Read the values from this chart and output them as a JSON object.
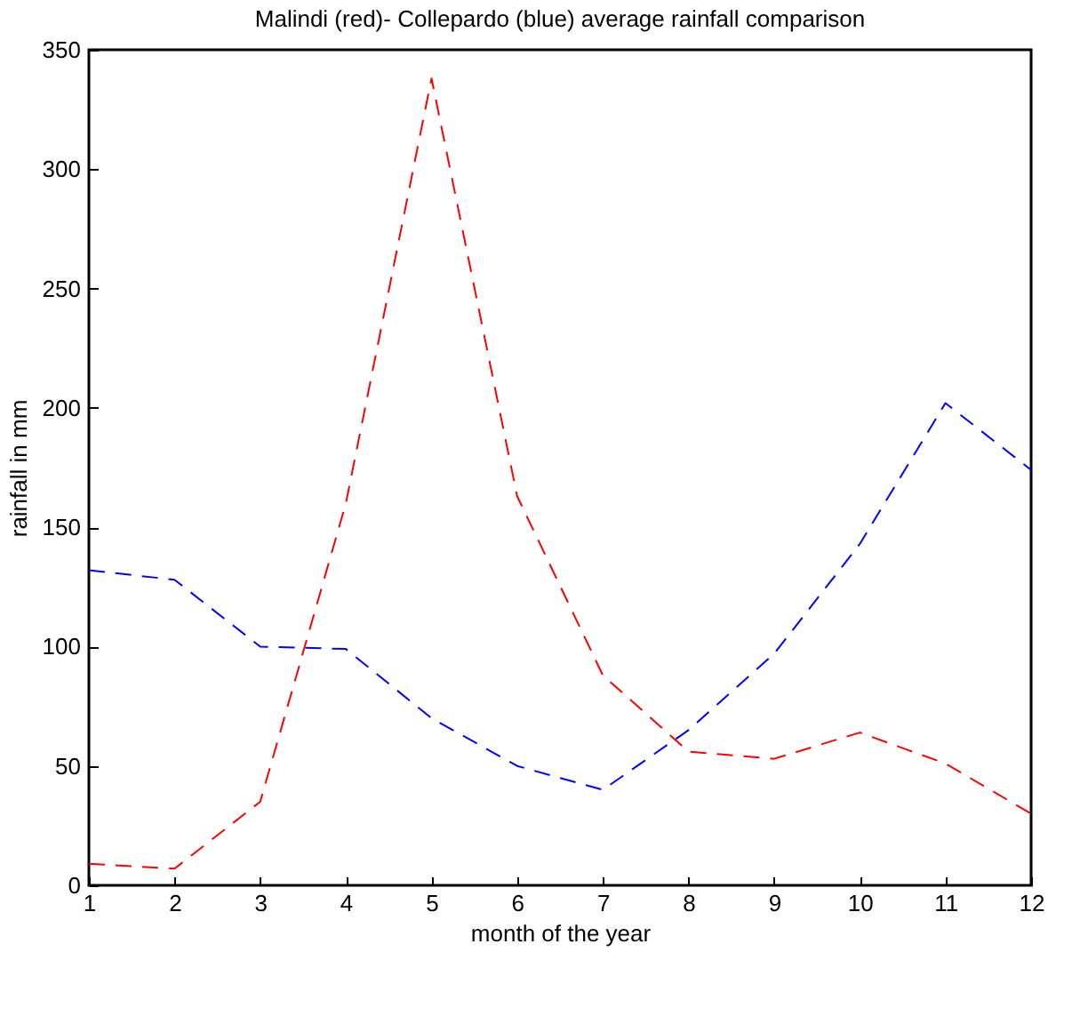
{
  "chart_data": {
    "type": "line",
    "title": "Malindi (red)- Collepardo (blue) average rainfall comparison",
    "xlabel": "month of the year",
    "ylabel": "rainfall in mm",
    "x": [
      1,
      2,
      3,
      4,
      5,
      6,
      7,
      8,
      9,
      10,
      11,
      12
    ],
    "series": [
      {
        "color": "#ff0000",
        "values": [
          9,
          7,
          35,
          160,
          338,
          163,
          88,
          56,
          53,
          64,
          51,
          30
        ]
      },
      {
        "color": "#0000ff",
        "values": [
          132,
          128,
          100,
          99,
          70,
          50,
          40,
          65,
          97,
          143,
          202,
          174
        ]
      }
    ],
    "xlim": [
      1,
      12
    ],
    "xticks": [
      1,
      2,
      3,
      4,
      5,
      6,
      7,
      8,
      9,
      10,
      11,
      12
    ],
    "ylim": [
      0,
      350
    ],
    "yticks": [
      0,
      50,
      100,
      150,
      200,
      250,
      300,
      350
    ],
    "grid": false,
    "legend": false,
    "marker": "none",
    "line_style": "dashed"
  }
}
